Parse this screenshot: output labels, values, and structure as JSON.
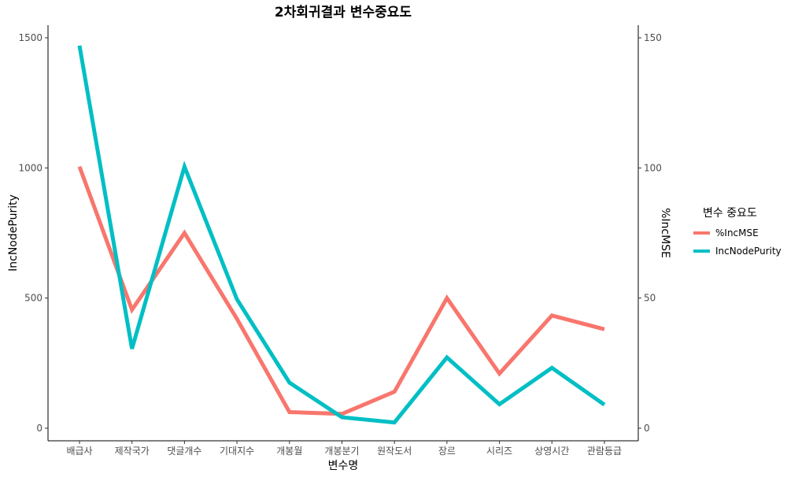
{
  "chart_data": {
    "type": "line",
    "title": "2차회귀결과 변수중요도",
    "xlabel": "변수명",
    "ylabel": "IncNodePurity",
    "y2label": "%IncMSE",
    "categories": [
      "배급사",
      "제작국가",
      "댓글개수",
      "기대지수",
      "개봉월",
      "개봉분기",
      "원작도서",
      "장르",
      "시리즈",
      "상영시간",
      "관람등급"
    ],
    "ylim": [
      0,
      1500
    ],
    "yticks": [
      0,
      500,
      1000,
      1500
    ],
    "y2lim": [
      0,
      150
    ],
    "y2ticks": [
      0,
      50,
      100,
      150
    ],
    "legend_title": "변수 중요도",
    "legend_position": "right",
    "series": [
      {
        "name": "%IncMSE",
        "axis": "right",
        "color": "#F8766D",
        "values": [
          100.5,
          45.5,
          75,
          42,
          6.2,
          5.5,
          14,
          50,
          21,
          43.3,
          38
        ]
      },
      {
        "name": "IncNodePurity",
        "axis": "left",
        "color": "#00BFC4",
        "values": [
          1470,
          305,
          1005,
          495,
          175,
          42,
          22,
          272,
          92,
          232,
          90
        ]
      }
    ]
  }
}
